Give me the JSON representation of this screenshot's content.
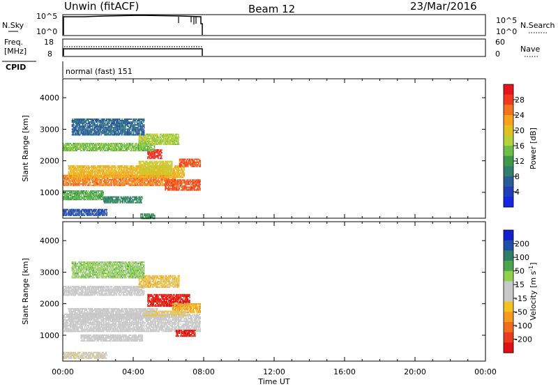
{
  "header": {
    "station": "Unwin (fitACF)",
    "beam": "Beam 12",
    "date": "23/Mar/2016"
  },
  "panels": {
    "nsky": {
      "label": "N.Sky",
      "ticks": [
        "10^5",
        "10^0"
      ],
      "right_label": "N.Search",
      "right_ticks": [
        "10^5",
        "10^0"
      ],
      "style": "line: N.Sky solid, N.Search dotted"
    },
    "freq": {
      "label_line1": "Freq.",
      "label_line2": "[MHz]",
      "ticks": [
        "18",
        "8"
      ],
      "right_label": "Nave",
      "right_ticks": [
        "60",
        "0"
      ],
      "style": "line: Freq solid, Nave dotted"
    },
    "cpid": {
      "label": "CPID",
      "text": "normal (fast) 151"
    }
  },
  "colorbars": {
    "power": {
      "label": "Power [dB]",
      "ticks": [
        "28",
        "24",
        "20",
        "16",
        "12",
        "8",
        "4"
      ],
      "colors": [
        "#e8141c",
        "#f03a1e",
        "#f4731e",
        "#f7a21c",
        "#e2c020",
        "#b7d13a",
        "#6cc04a",
        "#3e9a4a",
        "#2f7f6a",
        "#2a5c9a",
        "#1d3fb8",
        "#1726e6"
      ]
    },
    "velocity": {
      "label_prefix": "Velocity [m s",
      "label_sup": "-1",
      "label_suffix": "]",
      "ticks": [
        "200",
        "100",
        "50",
        "15",
        "-15",
        "-50",
        "-100",
        "-200"
      ],
      "colors": [
        "#1020d0",
        "#1f4fa8",
        "#2f7f66",
        "#4aa64a",
        "#8fd24a",
        "#c8c8c8",
        "#c8c8c8",
        "#f2c21f",
        "#f59a1c",
        "#ef6d1c",
        "#e83c1c",
        "#e00f10"
      ]
    }
  },
  "chart_data": [
    {
      "type": "heatmap",
      "name": "power",
      "xlabel": "Time UT",
      "ylabel": "Slant Range [km]",
      "xlim_hours": [
        0,
        24
      ],
      "ylim_km": [
        180,
        4600
      ],
      "x_ticks": [
        "00:00",
        "04:00",
        "08:00",
        "12:00",
        "16:00",
        "20:00",
        "00:00"
      ],
      "y_ticks": [
        1000,
        2000,
        3000,
        4000
      ],
      "zlabel": "Power [dB]",
      "zlim": [
        0,
        32
      ],
      "regions": [
        {
          "t0": 0.0,
          "t1": 6.4,
          "r0": 1200,
          "r1": 1550,
          "value": 25
        },
        {
          "t0": 0.3,
          "t1": 6.9,
          "r0": 1450,
          "r1": 1850,
          "value": 21
        },
        {
          "t0": 4.3,
          "t1": 6.2,
          "r0": 1550,
          "r1": 2000,
          "value": 19
        },
        {
          "t0": 5.8,
          "t1": 7.8,
          "r0": 1050,
          "r1": 1400,
          "value": 27
        },
        {
          "t0": 4.8,
          "t1": 5.6,
          "r0": 2050,
          "r1": 2350,
          "value": 29
        },
        {
          "t0": 6.6,
          "t1": 7.8,
          "r0": 1800,
          "r1": 2050,
          "value": 27
        },
        {
          "t0": 0.0,
          "t1": 5.2,
          "r0": 2300,
          "r1": 2550,
          "value": 15
        },
        {
          "t0": 4.3,
          "t1": 6.6,
          "r0": 2500,
          "r1": 2850,
          "value": 17
        },
        {
          "t0": 0.0,
          "t1": 2.3,
          "r0": 750,
          "r1": 1050,
          "value": 13
        },
        {
          "t0": 2.3,
          "t1": 4.5,
          "r0": 650,
          "r1": 850,
          "value": 10
        },
        {
          "t0": 0.5,
          "t1": 4.6,
          "r0": 2800,
          "r1": 3300,
          "value": 7
        },
        {
          "t0": 0.0,
          "t1": 2.5,
          "r0": 250,
          "r1": 450,
          "value": 5
        },
        {
          "t0": 4.4,
          "t1": 5.2,
          "r0": 150,
          "r1": 300,
          "value": 11
        }
      ]
    },
    {
      "type": "heatmap",
      "name": "velocity",
      "xlabel": "Time UT",
      "ylabel": "Slant Range [km]",
      "xlim_hours": [
        0,
        24
      ],
      "ylim_km": [
        180,
        4600
      ],
      "x_ticks": [
        "00:00",
        "04:00",
        "08:00",
        "12:00",
        "16:00",
        "20:00",
        "00:00"
      ],
      "y_ticks": [
        1000,
        2000,
        3000,
        4000
      ],
      "zlabel": "Velocity [m s-1]",
      "zlim": [
        -250,
        250
      ],
      "regions": [
        {
          "t0": 0.0,
          "t1": 7.8,
          "r0": 1100,
          "r1": 1650,
          "value": 0
        },
        {
          "t0": 0.3,
          "t1": 5.4,
          "r0": 1500,
          "r1": 1850,
          "value": 0
        },
        {
          "t0": 0.0,
          "t1": 4.6,
          "r0": 2250,
          "r1": 2550,
          "value": 0
        },
        {
          "t0": 1.0,
          "t1": 4.5,
          "r0": 800,
          "r1": 1000,
          "value": 0
        },
        {
          "t0": 4.8,
          "t1": 7.2,
          "r0": 1900,
          "r1": 2300,
          "value": -220
        },
        {
          "t0": 6.2,
          "t1": 7.8,
          "r0": 1700,
          "r1": 2000,
          "value": -90
        },
        {
          "t0": 6.4,
          "t1": 7.5,
          "r0": 950,
          "r1": 1150,
          "value": -220
        },
        {
          "t0": 4.3,
          "t1": 6.6,
          "r0": 2500,
          "r1": 2900,
          "value": -60
        },
        {
          "t0": 4.6,
          "t1": 7.0,
          "r0": 1600,
          "r1": 1750,
          "value": -40
        },
        {
          "t0": 0.5,
          "t1": 4.6,
          "r0": 2800,
          "r1": 3300,
          "value": 60
        },
        {
          "t0": 0.0,
          "t1": 2.5,
          "r0": 250,
          "r1": 450,
          "value": -20
        }
      ]
    }
  ]
}
